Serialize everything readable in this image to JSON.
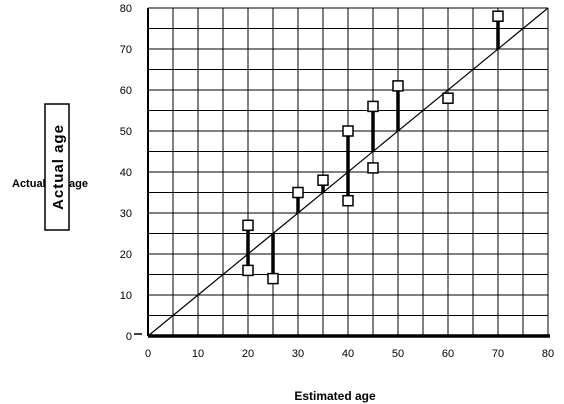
{
  "chart_data": {
    "type": "scatter",
    "xlabel": "Estimated  age",
    "ylabel": "Actual age",
    "side_label_left": "Actual",
    "side_label_right": "age",
    "xlim": [
      0,
      80
    ],
    "ylim": [
      0,
      80
    ],
    "x_ticks": [
      0,
      10,
      20,
      30,
      40,
      50,
      60,
      70,
      80
    ],
    "y_ticks": [
      0,
      10,
      20,
      30,
      40,
      50,
      60,
      70,
      80
    ],
    "grid": true,
    "reference_line": {
      "from": [
        0,
        0
      ],
      "to": [
        80,
        80
      ]
    },
    "points": [
      {
        "x": 20,
        "y": 27
      },
      {
        "x": 20,
        "y": 16
      },
      {
        "x": 25,
        "y": 14
      },
      {
        "x": 30,
        "y": 35
      },
      {
        "x": 35,
        "y": 38
      },
      {
        "x": 40,
        "y": 50
      },
      {
        "x": 40,
        "y": 33
      },
      {
        "x": 45,
        "y": 56
      },
      {
        "x": 45,
        "y": 41
      },
      {
        "x": 50,
        "y": 61
      },
      {
        "x": 60,
        "y": 58
      },
      {
        "x": 70,
        "y": 78
      }
    ],
    "residual_segments": [
      {
        "x": 20,
        "y1": 20,
        "y2": 27
      },
      {
        "x": 20,
        "y1": 16,
        "y2": 20
      },
      {
        "x": 25,
        "y1": 14,
        "y2": 25
      },
      {
        "x": 30,
        "y1": 30,
        "y2": 35
      },
      {
        "x": 35,
        "y1": 35,
        "y2": 38
      },
      {
        "x": 40,
        "y1": 40,
        "y2": 50
      },
      {
        "x": 40,
        "y1": 33,
        "y2": 40
      },
      {
        "x": 45,
        "y1": 45,
        "y2": 56
      },
      {
        "x": 50,
        "y1": 50,
        "y2": 61
      },
      {
        "x": 70,
        "y1": 70,
        "y2": 78
      }
    ]
  }
}
